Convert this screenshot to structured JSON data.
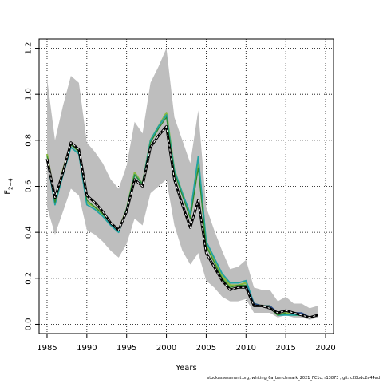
{
  "chart_data": {
    "type": "line",
    "xlabel": "Years",
    "ylabel_main": "F",
    "ylabel_sub": "2−4",
    "xlim": [
      1984,
      2021
    ],
    "ylim": [
      -0.04,
      1.24
    ],
    "x_ticks": [
      1985,
      1990,
      1995,
      2000,
      2005,
      2010,
      2015,
      2020
    ],
    "y_ticks": [
      "0.0",
      "0.2",
      "0.4",
      "0.6",
      "0.8",
      "1.0",
      "1.2"
    ],
    "grid": "dotted",
    "colors": {
      "band": "#bebebe",
      "baseline": "#000000",
      "series_green": "#8ab840",
      "series_teal": "#21a3a3",
      "series_blue": "#2c4f8c",
      "series_dark_green": "#2e8b2e"
    },
    "band": {
      "x": [
        1985,
        1986,
        1987,
        1988,
        1989,
        1990,
        1991,
        1992,
        1993,
        1994,
        1995,
        1996,
        1997,
        1998,
        1999,
        2000,
        2001,
        2002,
        2003,
        2004,
        2005,
        2006,
        2007,
        2008,
        2009,
        2010,
        2011,
        2012,
        2013,
        2014,
        2015,
        2016,
        2017,
        2018,
        2019
      ],
      "lower": [
        0.51,
        0.39,
        0.49,
        0.59,
        0.56,
        0.41,
        0.39,
        0.36,
        0.32,
        0.29,
        0.35,
        0.46,
        0.43,
        0.57,
        0.6,
        0.63,
        0.43,
        0.32,
        0.26,
        0.31,
        0.19,
        0.16,
        0.12,
        0.1,
        0.1,
        0.11,
        0.05,
        0.05,
        0.05,
        0.03,
        0.04,
        0.03,
        0.03,
        0.02,
        0.03
      ],
      "upper": [
        1.07,
        0.8,
        0.95,
        1.08,
        1.05,
        0.79,
        0.75,
        0.7,
        0.63,
        0.59,
        0.69,
        0.88,
        0.83,
        1.05,
        1.12,
        1.2,
        0.9,
        0.8,
        0.7,
        0.93,
        0.51,
        0.41,
        0.32,
        0.24,
        0.25,
        0.28,
        0.16,
        0.15,
        0.15,
        0.1,
        0.12,
        0.09,
        0.09,
        0.07,
        0.08
      ]
    },
    "series": [
      {
        "role": "baseline",
        "x": [
          1985,
          1986,
          1987,
          1988,
          1989,
          1990,
          1991,
          1992,
          1993,
          1994,
          1995,
          1996,
          1997,
          1998,
          1999,
          2000,
          2001,
          2002,
          2003,
          2004,
          2005,
          2006,
          2007,
          2008,
          2009,
          2010,
          2011,
          2012,
          2013,
          2014,
          2015,
          2016,
          2017,
          2018,
          2019
        ],
        "values": [
          0.72,
          0.55,
          0.66,
          0.79,
          0.76,
          0.56,
          0.53,
          0.49,
          0.44,
          0.41,
          0.49,
          0.63,
          0.6,
          0.77,
          0.82,
          0.86,
          0.63,
          0.52,
          0.42,
          0.54,
          0.31,
          0.25,
          0.19,
          0.15,
          0.16,
          0.16,
          0.08,
          0.08,
          0.07,
          0.05,
          0.06,
          0.05,
          0.04,
          0.03,
          0.04
        ]
      },
      {
        "role": "green",
        "x": [
          1985,
          1986,
          1987,
          1988,
          1989,
          1990,
          1991,
          1992,
          1993,
          1994,
          1995,
          1996,
          1997,
          1998,
          1999,
          2000,
          2001,
          2002,
          2003,
          2004,
          2005,
          2006,
          2007,
          2008,
          2009,
          2010,
          2011,
          2012,
          2013,
          2014,
          2015,
          2016,
          2017,
          2018
        ],
        "values": [
          0.74,
          0.54,
          0.67,
          0.79,
          0.75,
          0.53,
          0.51,
          0.48,
          0.44,
          0.41,
          0.5,
          0.66,
          0.61,
          0.8,
          0.86,
          0.92,
          0.67,
          0.57,
          0.47,
          0.71,
          0.35,
          0.28,
          0.21,
          0.17,
          0.17,
          0.18,
          0.09,
          0.08,
          0.08,
          0.04,
          0.05,
          0.04,
          0.04,
          0.03
        ]
      },
      {
        "role": "teal",
        "x": [
          1985,
          1986,
          1987,
          1988,
          1989,
          1990,
          1991,
          1992,
          1993,
          1994,
          1995,
          1996,
          1997,
          1998,
          1999,
          2000,
          2001,
          2002,
          2003,
          2004,
          2005,
          2006,
          2007,
          2008,
          2009,
          2010,
          2011,
          2012,
          2013,
          2014,
          2015,
          2016,
          2017,
          2018
        ],
        "values": [
          0.72,
          0.52,
          0.65,
          0.77,
          0.74,
          0.52,
          0.5,
          0.47,
          0.43,
          0.4,
          0.5,
          0.65,
          0.61,
          0.8,
          0.86,
          0.91,
          0.67,
          0.57,
          0.48,
          0.73,
          0.36,
          0.29,
          0.22,
          0.18,
          0.18,
          0.19,
          0.09,
          0.08,
          0.08,
          0.04,
          0.04,
          0.04,
          0.04,
          0.03
        ]
      },
      {
        "role": "dark-green",
        "x": [
          1985,
          1986,
          1987,
          1988,
          1989,
          1990,
          1991,
          1992,
          1993,
          1994,
          1995,
          1996,
          1997,
          1998,
          1999,
          2000,
          2001,
          2002,
          2003,
          2004,
          2005,
          2006,
          2007,
          2008,
          2009,
          2010,
          2011,
          2012,
          2013,
          2014,
          2015
        ],
        "values": [
          0.73,
          0.53,
          0.66,
          0.78,
          0.75,
          0.54,
          0.51,
          0.48,
          0.44,
          0.41,
          0.5,
          0.65,
          0.61,
          0.79,
          0.85,
          0.9,
          0.66,
          0.56,
          0.46,
          0.68,
          0.34,
          0.27,
          0.2,
          0.16,
          0.17,
          0.17,
          0.08,
          0.08,
          0.07,
          0.04,
          0.05
        ]
      },
      {
        "role": "blue",
        "x": [
          2010,
          2011,
          2012,
          2013,
          2014,
          2015,
          2016,
          2017,
          2018,
          2019
        ],
        "values": [
          0.17,
          0.09,
          0.08,
          0.08,
          0.05,
          0.06,
          0.05,
          0.05,
          0.03,
          0.04
        ]
      }
    ]
  },
  "footnote": "stockassessment.org, whiting_6a_benchmark_2021_FC1c, r13873 , git: c28bdc2a44ad"
}
